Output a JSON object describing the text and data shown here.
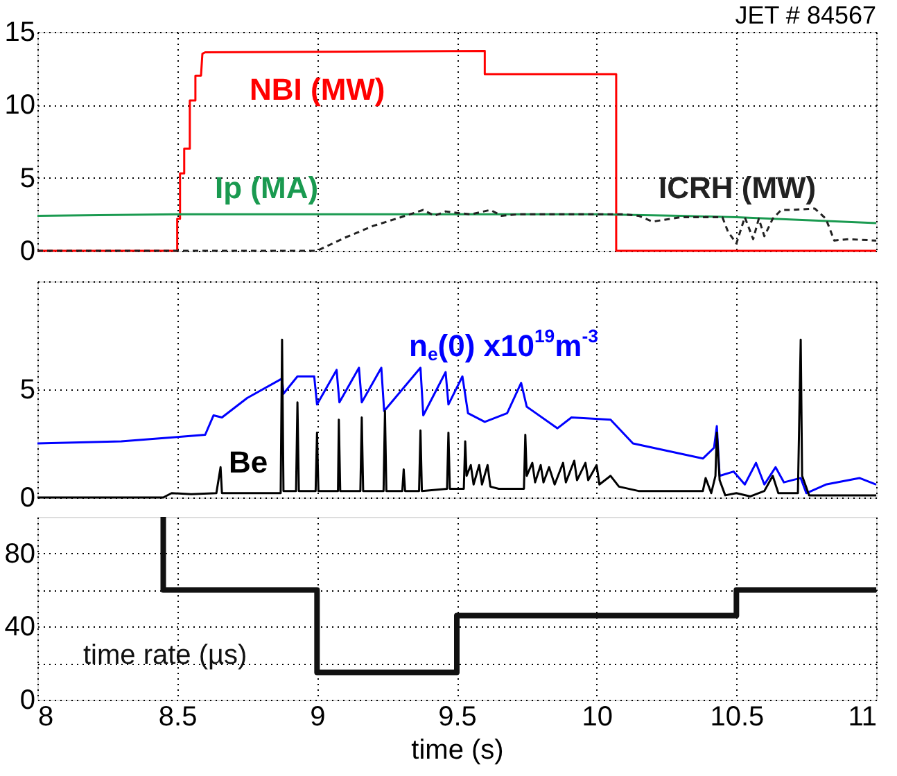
{
  "chart_data": [
    {
      "type": "line",
      "xlim": [
        8,
        11
      ],
      "xticks": [
        8,
        8.5,
        9,
        9.5,
        10,
        10.5,
        11
      ],
      "ylim": [
        0,
        15
      ],
      "yticks": [
        0,
        5,
        10,
        15
      ],
      "grid": true,
      "legend": false,
      "tick_labels": "y",
      "annotations": [
        "JET # 84567"
      ],
      "series": [
        {
          "name": "NBI (MW)",
          "color": "#ff0000",
          "line_style": "solid",
          "x": [
            8,
            8.5,
            8.5,
            8.51,
            8.51,
            8.525,
            8.525,
            8.545,
            8.545,
            8.565,
            8.565,
            8.585,
            8.59,
            8.6,
            9.6,
            9.6,
            10.07,
            10.07,
            11
          ],
          "values": [
            0,
            0,
            2.2,
            2.2,
            5.3,
            5.3,
            7.0,
            7.0,
            10.3,
            10.3,
            12.0,
            12.0,
            13.5,
            13.6,
            13.7,
            12.1,
            12.1,
            0,
            0
          ]
        },
        {
          "name": "Ip (MA)",
          "color": "#1a9a50",
          "line_style": "solid",
          "x": [
            8,
            8.5,
            9,
            9.5,
            10,
            10.3,
            10.5,
            10.75,
            11
          ],
          "values": [
            2.4,
            2.5,
            2.5,
            2.5,
            2.5,
            2.4,
            2.3,
            2.1,
            1.9
          ]
        },
        {
          "name": "ICRH (MW)",
          "color": "#222222",
          "line_style": "dashed",
          "x": [
            8,
            9.0,
            9.1,
            9.2,
            9.3,
            9.38,
            9.42,
            9.46,
            9.5,
            9.55,
            9.62,
            9.66,
            9.72,
            9.76,
            10.1,
            10.15,
            10.2,
            10.3,
            10.45,
            10.47,
            10.5,
            10.53,
            10.56,
            10.58,
            10.6,
            10.63,
            10.66,
            10.7,
            10.78,
            10.82,
            10.85,
            10.9,
            11
          ],
          "values": [
            0,
            0,
            0.9,
            1.7,
            2.3,
            2.8,
            2.4,
            2.7,
            2.6,
            2.5,
            2.8,
            2.4,
            2.5,
            2.5,
            2.5,
            2.4,
            2.0,
            2.3,
            2.3,
            1.3,
            0.5,
            2.3,
            0.8,
            2.2,
            1.0,
            2.2,
            2.8,
            2.8,
            2.9,
            2.2,
            0.7,
            0.8,
            0.7
          ]
        }
      ]
    },
    {
      "type": "line",
      "xlim": [
        8,
        11
      ],
      "xticks": [
        8,
        8.5,
        9,
        9.5,
        10,
        10.5,
        11
      ],
      "ylim": [
        0,
        10
      ],
      "yticks": [
        0,
        5,
        {
          "value": 10,
          "label": null
        }
      ],
      "grid": true,
      "legend": false,
      "tick_labels": "y",
      "series": [
        {
          "name": "n$_{e}$(0) x10$^{19}$m$^{-3}$",
          "color": "#0000ff",
          "line_style": "solid",
          "x": [
            8.0,
            8.3,
            8.5,
            8.6,
            8.63,
            8.66,
            8.75,
            8.875,
            8.88,
            8.93,
            8.99,
            9.0,
            9.07,
            9.08,
            9.15,
            9.16,
            9.23,
            9.24,
            9.37,
            9.38,
            9.46,
            9.47,
            9.52,
            9.54,
            9.6,
            9.68,
            9.73,
            9.75,
            9.86,
            9.91,
            10.05,
            10.13,
            10.38,
            10.42,
            10.43,
            10.44,
            10.49,
            10.53,
            10.57,
            10.6,
            10.64,
            10.67,
            10.73,
            10.75,
            10.82,
            10.94,
            11.0
          ],
          "values": [
            2.5,
            2.6,
            2.8,
            2.9,
            3.8,
            3.7,
            4.6,
            5.5,
            4.8,
            5.6,
            5.6,
            4.3,
            5.9,
            4.4,
            6.0,
            4.4,
            6.0,
            4.0,
            6.0,
            3.8,
            5.8,
            4.3,
            5.6,
            3.9,
            3.5,
            3.9,
            5.3,
            4.2,
            3.2,
            3.7,
            3.6,
            2.5,
            1.8,
            2.3,
            3.3,
            1.0,
            1.2,
            0.6,
            1.6,
            0.6,
            1.4,
            0.7,
            0.9,
            0.2,
            0.6,
            0.9,
            0.6
          ]
        },
        {
          "name": "Be",
          "color": "#000000",
          "line_style": "solid",
          "x": [
            8.0,
            8.45,
            8.48,
            8.55,
            8.64,
            8.655,
            8.66,
            8.87,
            8.875,
            8.88,
            8.925,
            8.93,
            8.935,
            8.995,
            9.0,
            9.005,
            9.075,
            9.078,
            9.083,
            9.155,
            9.16,
            9.165,
            9.238,
            9.243,
            9.248,
            9.305,
            9.31,
            9.315,
            9.365,
            9.37,
            9.375,
            9.465,
            9.47,
            9.475,
            9.525,
            9.53,
            9.535,
            9.55,
            9.56,
            9.58,
            9.59,
            9.61,
            9.62,
            9.65,
            9.74,
            9.745,
            9.75,
            9.77,
            9.78,
            9.8,
            9.81,
            9.83,
            9.85,
            9.88,
            9.89,
            9.92,
            9.93,
            9.96,
            9.97,
            10.0,
            10.01,
            10.05,
            10.08,
            10.15,
            10.38,
            10.39,
            10.41,
            10.425,
            10.43,
            10.44,
            10.46,
            10.5,
            10.55,
            10.6,
            10.63,
            10.65,
            10.72,
            10.73,
            10.735,
            10.76,
            11.0
          ],
          "values": [
            0.0,
            0.0,
            0.2,
            0.15,
            0.2,
            1.4,
            0.2,
            0.2,
            7.3,
            0.3,
            0.3,
            4.4,
            0.3,
            0.3,
            3.0,
            0.3,
            0.3,
            3.6,
            0.3,
            0.3,
            3.7,
            0.3,
            0.3,
            4.0,
            0.3,
            0.3,
            1.3,
            0.3,
            0.3,
            3.1,
            0.3,
            0.4,
            3.0,
            0.4,
            0.4,
            2.6,
            1.0,
            1.5,
            0.6,
            1.5,
            0.6,
            1.5,
            0.5,
            0.4,
            0.4,
            2.9,
            1.0,
            1.6,
            0.7,
            1.5,
            0.7,
            1.4,
            0.6,
            1.6,
            0.7,
            1.7,
            0.8,
            1.6,
            0.8,
            1.5,
            0.6,
            1.0,
            0.5,
            0.3,
            0.3,
            0.9,
            0.2,
            1.0,
            3.0,
            0.8,
            0.1,
            0.2,
            0.05,
            0.3,
            1.0,
            0.2,
            0.2,
            7.3,
            1.0,
            0.1,
            0.1
          ]
        }
      ]
    },
    {
      "type": "step",
      "xlim": [
        8,
        11
      ],
      "xticks": [
        8,
        8.5,
        9,
        9.5,
        10,
        10.5,
        11
      ],
      "ylim": [
        0,
        100
      ],
      "yticks": [
        0,
        {
          "value": 20,
          "label": null
        },
        40,
        {
          "value": 60,
          "label": null
        },
        80
      ],
      "grid": true,
      "legend": false,
      "xlabel": "time (s)",
      "series": [
        {
          "name": "time rate (µs)",
          "color": "#111111",
          "line_style": "solid",
          "x": [
            8.45,
            8.45,
            9,
            9.5,
            10.5,
            11
          ],
          "values": [
            100,
            60,
            15,
            46,
            60,
            60
          ]
        }
      ]
    }
  ]
}
